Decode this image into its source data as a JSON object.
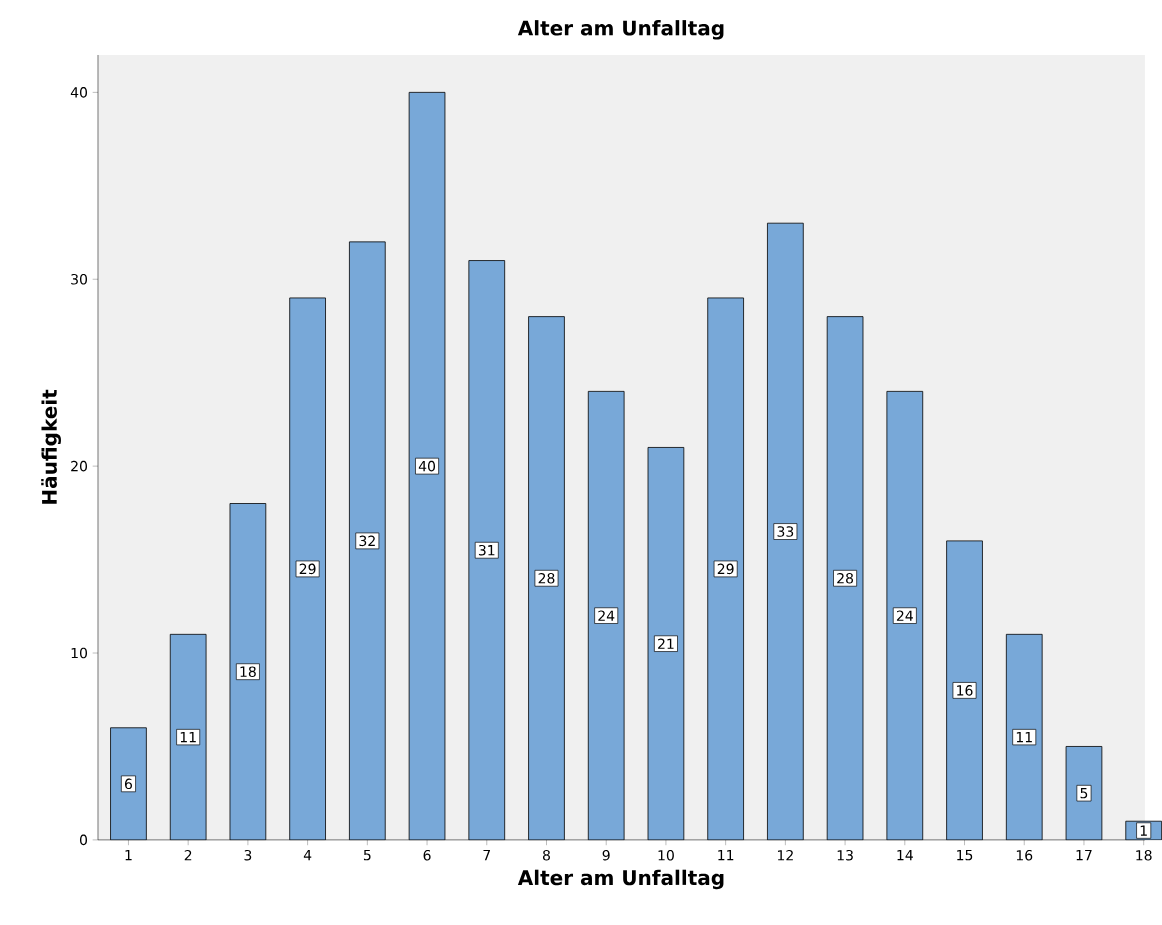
{
  "chart_data": {
    "type": "bar",
    "title": "Alter am Unfalltag",
    "xlabel": "Alter am Unfalltag",
    "ylabel": "Häufigkeit",
    "categories": [
      "1",
      "2",
      "3",
      "4",
      "5",
      "6",
      "7",
      "8",
      "9",
      "10",
      "11",
      "12",
      "13",
      "14",
      "15",
      "16",
      "17",
      "18"
    ],
    "values": [
      6,
      11,
      18,
      29,
      32,
      40,
      31,
      28,
      24,
      21,
      29,
      33,
      28,
      24,
      16,
      11,
      5,
      1
    ],
    "color": "#78a8d8",
    "ylim": [
      0,
      42
    ],
    "yticks": [
      0,
      10,
      20,
      30,
      40
    ],
    "data_labels": true
  }
}
